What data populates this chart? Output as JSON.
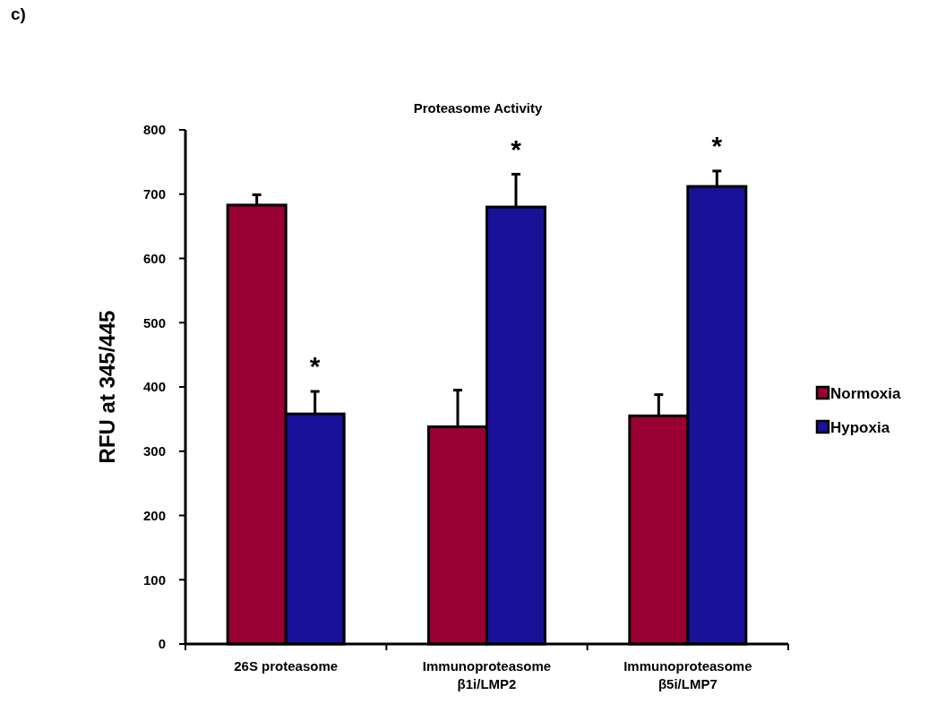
{
  "chart_data": {
    "type": "bar",
    "title": "Proteasome  Activity",
    "ylabel": "RFU at 345/445",
    "categories": [
      "26S proteasome",
      "Immunoproteasome\nβ1i/LMP2",
      "Immunoproteasome\nβ5i/LMP7"
    ],
    "series": [
      {
        "name": "Normoxia",
        "color": "#990033",
        "values": [
          683,
          338,
          355
        ],
        "errors": [
          [
            683,
            699
          ],
          [
            338,
            395
          ],
          [
            355,
            388
          ]
        ]
      },
      {
        "name": "Hypoxia",
        "color": "#1a1199",
        "values": [
          358,
          680,
          712
        ],
        "errors": [
          [
            358,
            393
          ],
          [
            680,
            731
          ],
          [
            712,
            736
          ]
        ]
      }
    ],
    "ylim": [
      0,
      800
    ],
    "yticks": [
      0,
      100,
      200,
      300,
      400,
      500,
      600,
      700,
      800
    ],
    "grid": false,
    "legend": "right",
    "annotations": [
      "c)",
      {
        "text": "*",
        "x": "26S proteasome",
        "y": 358
      },
      {
        "text": "*",
        "x": "Immunoproteasome\nβ1i/LMP2",
        "y": 680
      },
      {
        "text": "*",
        "x": "Immunoproteasome\nβ5i/LMP7",
        "y": 712
      }
    ]
  }
}
